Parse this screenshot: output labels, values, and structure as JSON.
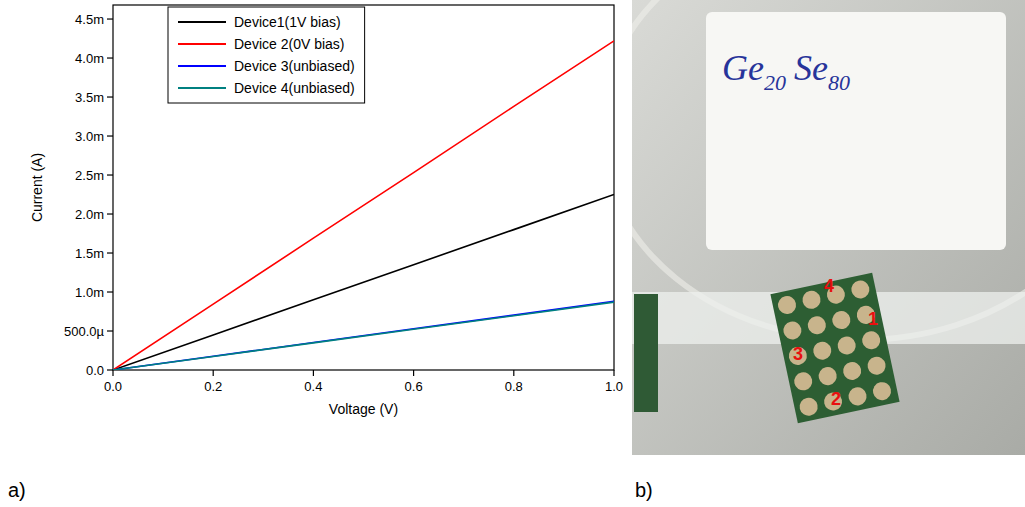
{
  "chart_data": {
    "type": "line",
    "x_label": "Voltage (V)",
    "y_label": "Current (A)",
    "x": [
      0,
      0.2,
      0.4,
      0.6,
      0.8,
      1
    ],
    "xlim": [
      0,
      1
    ],
    "xticks": [
      {
        "value": 0,
        "label": "0.0"
      },
      0.2,
      0.4,
      0.6,
      0.8,
      {
        "value": 1,
        "label": "1.0"
      }
    ],
    "ylim": [
      0,
      0.00468
    ],
    "yticks": [
      {
        "value": 0,
        "label": "0.0"
      },
      {
        "value": 0.0005,
        "label": "500.0µ"
      },
      {
        "value": 0.001,
        "label": "1.0m"
      },
      {
        "value": 0.0015,
        "label": "1.5m"
      },
      {
        "value": 0.002,
        "label": "2.0m"
      },
      {
        "value": 0.0025,
        "label": "2.5m"
      },
      {
        "value": 0.003,
        "label": "3.0m"
      },
      {
        "value": 0.0035,
        "label": "3.5m"
      },
      {
        "value": 0.004,
        "label": "4.0m"
      },
      {
        "value": 0.0045,
        "label": "4.5m"
      }
    ],
    "grid": false,
    "legend": "upper left",
    "series": [
      {
        "name": "Device1(1V bias)",
        "color": "#000000",
        "values": [
          0,
          0.00045,
          0.0009,
          0.00135,
          0.0018,
          0.00225
        ]
      },
      {
        "name": "Device 2(0V bias)",
        "color": "#ff0000",
        "values": [
          0,
          0.000845,
          0.00169,
          0.00253,
          0.00338,
          0.00422
        ]
      },
      {
        "name": "Device 3(unbiased)",
        "color": "#0000ff",
        "values": [
          0,
          0.000176,
          0.000352,
          0.000528,
          0.000704,
          0.00088
        ]
      },
      {
        "name": "Device 4(unbiased)",
        "color": "#008080",
        "values": [
          0,
          0.000174,
          0.000348,
          0.000522,
          0.000696,
          0.00087
        ]
      }
    ]
  },
  "panel_labels": [
    "a)",
    "b)"
  ],
  "photo": {
    "sample_label": [
      {
        "text": "Ge",
        "sub": "20"
      },
      {
        "text": "Se",
        "sub": "80"
      }
    ],
    "device_labels": [
      "4",
      "1",
      "3",
      "2"
    ]
  }
}
